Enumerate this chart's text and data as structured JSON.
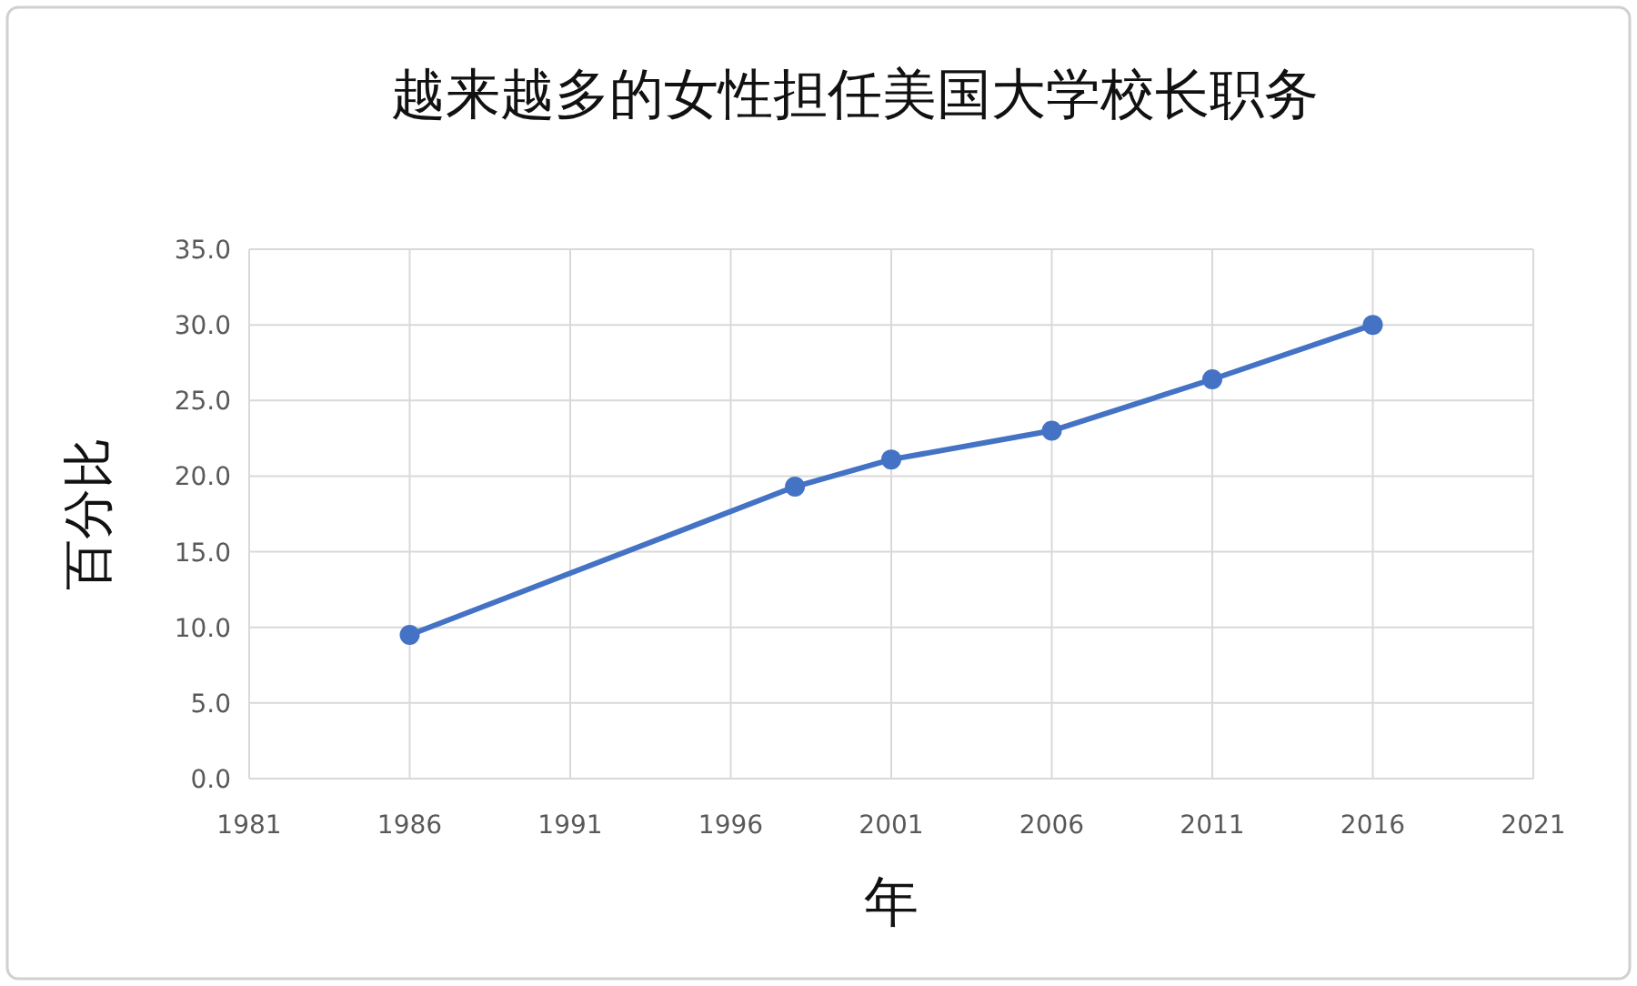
{
  "chart_data": {
    "type": "line",
    "title": "越来越多的女性担任美国大学校长职务",
    "xlabel": "年",
    "ylabel": "百分比",
    "x": [
      1986,
      1998,
      2001,
      2006,
      2011,
      2016
    ],
    "series": [
      {
        "color": "#4472c4",
        "values": [
          9.5,
          19.3,
          21.1,
          23.0,
          26.4,
          30.0
        ]
      }
    ],
    "xlim": [
      1981,
      2021
    ],
    "xticks": [
      1981,
      1986,
      1991,
      1996,
      2001,
      2006,
      2011,
      2016,
      2021
    ],
    "ylim": [
      0,
      35
    ],
    "yticks": [
      {
        "value": 0,
        "label": "0.0"
      },
      {
        "value": 5,
        "label": "5.0"
      },
      {
        "value": 10,
        "label": "10.0"
      },
      {
        "value": 15,
        "label": "15.0"
      },
      {
        "value": 20,
        "label": "20.0"
      },
      {
        "value": 25,
        "label": "25.0"
      },
      {
        "value": 30,
        "label": "30.0"
      },
      {
        "value": 35,
        "label": "35.0"
      }
    ],
    "grid": true,
    "marker": "circle",
    "line_style": "solid"
  }
}
